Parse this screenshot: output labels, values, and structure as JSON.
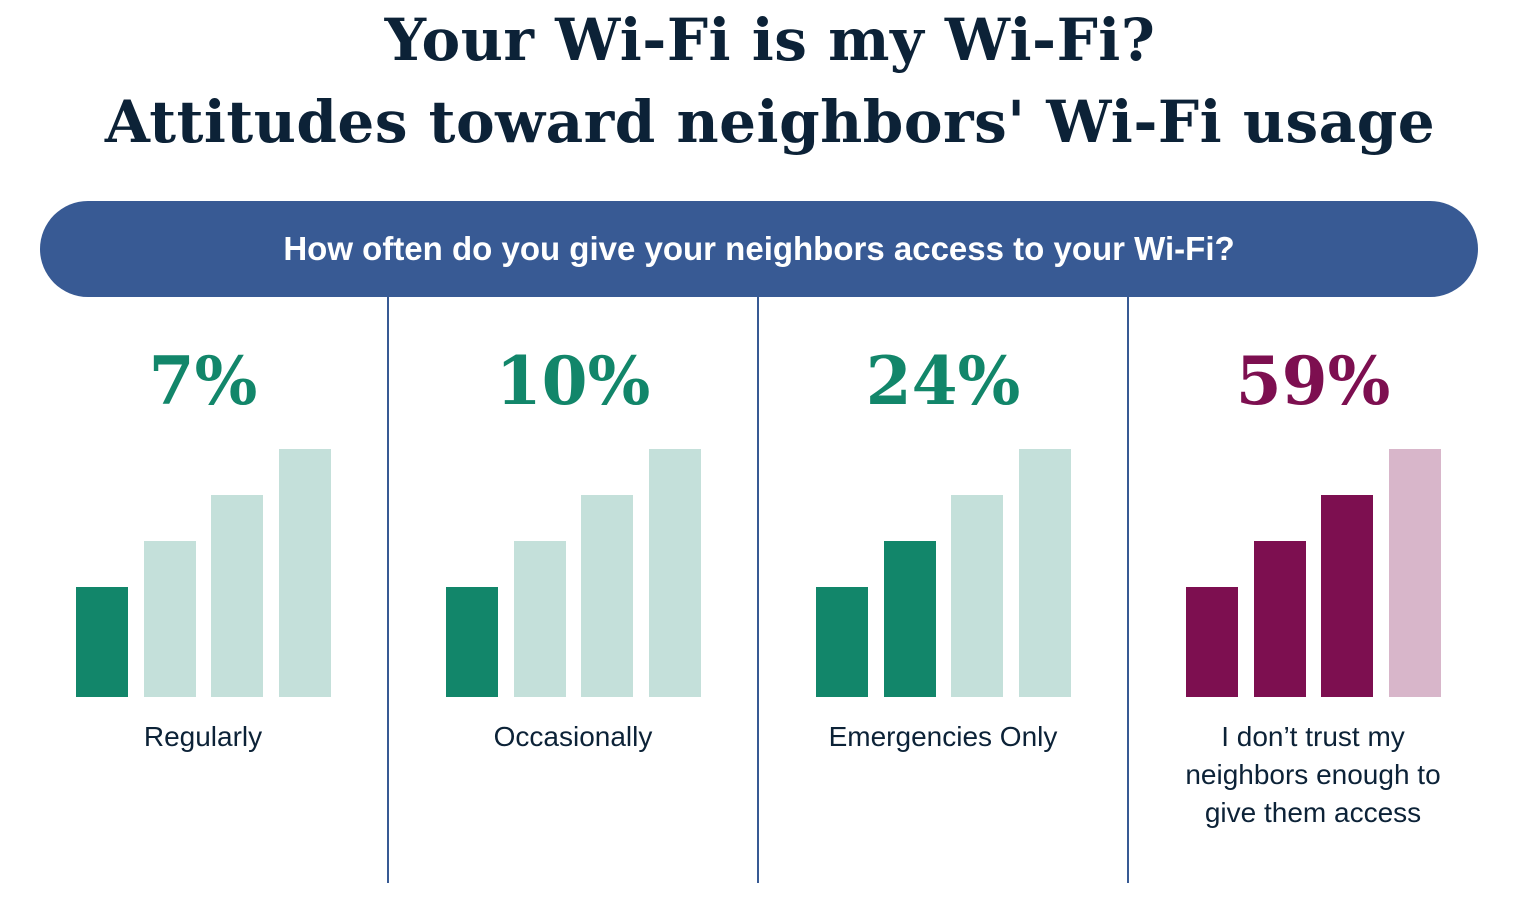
{
  "title_line1": "Your Wi-Fi is my Wi-Fi?",
  "title_line2": "Attitudes toward neighbors' Wi-Fi usage",
  "question": "How often do you give your neighbors access to your Wi-Fi?",
  "colors": {
    "green": "#12866a",
    "green_light": "#c4e0da",
    "maroon": "#7d0f50",
    "maroon_light": "#d8b6ca",
    "banner": "#385a94",
    "text": "#0c2237"
  },
  "chart_data": {
    "type": "bar",
    "title": "How often do you give your neighbors access to your Wi-Fi?",
    "categories": [
      "Regularly",
      "Occasionally",
      "Emergencies Only",
      "I don’t trust my neighbors enough to give them access"
    ],
    "values": [
      7,
      10,
      24,
      59
    ],
    "value_labels": [
      "7%",
      "10%",
      "24%",
      "59%"
    ],
    "unit": "%",
    "icon": "wifi-signal-bars",
    "filled_bars_of_4": [
      1,
      1,
      2,
      3
    ],
    "series_colors": [
      "green",
      "green",
      "green",
      "maroon"
    ]
  }
}
